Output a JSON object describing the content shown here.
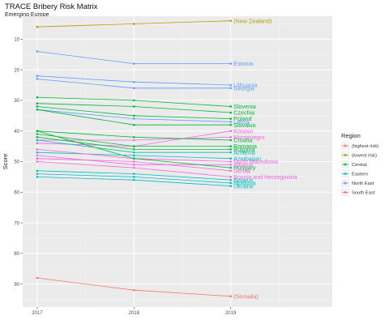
{
  "chart_data": {
    "type": "line",
    "title": "TRACE Bribery Risk Matrix",
    "subtitle": "Emerging Europe",
    "xlabel": "",
    "ylabel": "Score",
    "x": [
      2017,
      2018,
      2019
    ],
    "x_tick_labels": [
      "2017",
      "2018",
      "2019"
    ],
    "xlim": [
      2016.85,
      2020.05
    ],
    "ylim": [
      97.5,
      2.5
    ],
    "y_reversed": true,
    "y_ticks": [
      10,
      20,
      30,
      40,
      50,
      60,
      70,
      80,
      90
    ],
    "y_tick_labels": [
      "10",
      "20",
      "30",
      "40",
      "50",
      "60",
      "70",
      "80",
      "90"
    ],
    "grid": true,
    "legend": {
      "title": "Region",
      "placement": "right",
      "entries": [
        {
          "label": "(highest risk)",
          "color": "#F8766D"
        },
        {
          "label": "(lowest risk)",
          "color": "#B79F00"
        },
        {
          "label": "Central",
          "color": "#00BA38"
        },
        {
          "label": "Eastern",
          "color": "#00BFC4"
        },
        {
          "label": "North East",
          "color": "#619CFF"
        },
        {
          "label": "South East",
          "color": "#F564E3"
        }
      ]
    },
    "series": [
      {
        "name": "(New Zealand)",
        "region": "(lowest risk)",
        "color": "#B79F00",
        "values": [
          6,
          5,
          4
        ]
      },
      {
        "name": "Estonia",
        "region": "North East",
        "color": "#619CFF",
        "values": [
          14,
          18,
          18
        ]
      },
      {
        "name": "Lithuania",
        "region": "North East",
        "color": "#619CFF",
        "values": [
          22,
          24,
          25
        ]
      },
      {
        "name": "Georgia",
        "region": "North East",
        "color": "#619CFF",
        "values": [
          23,
          26,
          26
        ]
      },
      {
        "name": "Slovenia",
        "region": "Central",
        "color": "#00BA38",
        "values": [
          29,
          30,
          32
        ]
      },
      {
        "name": "Czechia",
        "region": "Central",
        "color": "#00BA38",
        "values": [
          31,
          32,
          34
        ]
      },
      {
        "name": "Poland",
        "region": "Central",
        "color": "#00BA38",
        "values": [
          32,
          35,
          36
        ]
      },
      {
        "name": "Latvia",
        "region": "North East",
        "color": "#619CFF",
        "values": [
          33,
          36,
          37
        ]
      },
      {
        "name": "Slovakia",
        "region": "Central",
        "color": "#00BA38",
        "values": [
          33,
          38,
          38
        ]
      },
      {
        "name": "Kosovo",
        "region": "South East",
        "color": "#F564E3",
        "values": [
          44,
          45,
          40
        ]
      },
      {
        "name": "Montenegro",
        "region": "South East",
        "color": "#F564E3",
        "values": [
          43,
          43,
          42
        ]
      },
      {
        "name": "Croatia",
        "region": "Central",
        "color": "#00BA38",
        "values": [
          40,
          42,
          43
        ]
      },
      {
        "name": "Romania",
        "region": "Central",
        "color": "#00BA38",
        "values": [
          41,
          45,
          45
        ]
      },
      {
        "name": "Bulgaria",
        "region": "Central",
        "color": "#00BA38",
        "values": [
          42,
          46,
          46
        ]
      },
      {
        "name": "Armenia",
        "region": "Eastern",
        "color": "#00BFC4",
        "values": [
          43,
          47,
          47
        ]
      },
      {
        "name": "Azerbaijan",
        "region": "Eastern",
        "color": "#00BFC4",
        "values": [
          47,
          48,
          49
        ]
      },
      {
        "name": "North Macedonia",
        "region": "South East",
        "color": "#F564E3",
        "values": [
          46,
          49,
          50
        ]
      },
      {
        "name": "Albania",
        "region": "South East",
        "color": "#F564E3",
        "values": [
          48,
          51,
          51
        ]
      },
      {
        "name": "Hungary",
        "region": "Central",
        "color": "#00BA38",
        "values": [
          40,
          49,
          52
        ]
      },
      {
        "name": "Serbia",
        "region": "South East",
        "color": "#F564E3",
        "values": [
          49,
          50,
          53
        ]
      },
      {
        "name": "Bosnia and Herzegovina",
        "region": "South East",
        "color": "#F564E3",
        "values": [
          50,
          52,
          55
        ]
      },
      {
        "name": "Belarus",
        "region": "Eastern",
        "color": "#00BFC4",
        "values": [
          53,
          54,
          56
        ]
      },
      {
        "name": "Moldova",
        "region": "Eastern",
        "color": "#00BFC4",
        "values": [
          54,
          55,
          57
        ]
      },
      {
        "name": "Ukraine",
        "region": "Eastern",
        "color": "#00BFC4",
        "values": [
          55,
          56,
          58
        ]
      },
      {
        "name": "(Somalia)",
        "region": "(highest risk)",
        "color": "#F8766D",
        "values": [
          88,
          92,
          94
        ]
      }
    ]
  }
}
